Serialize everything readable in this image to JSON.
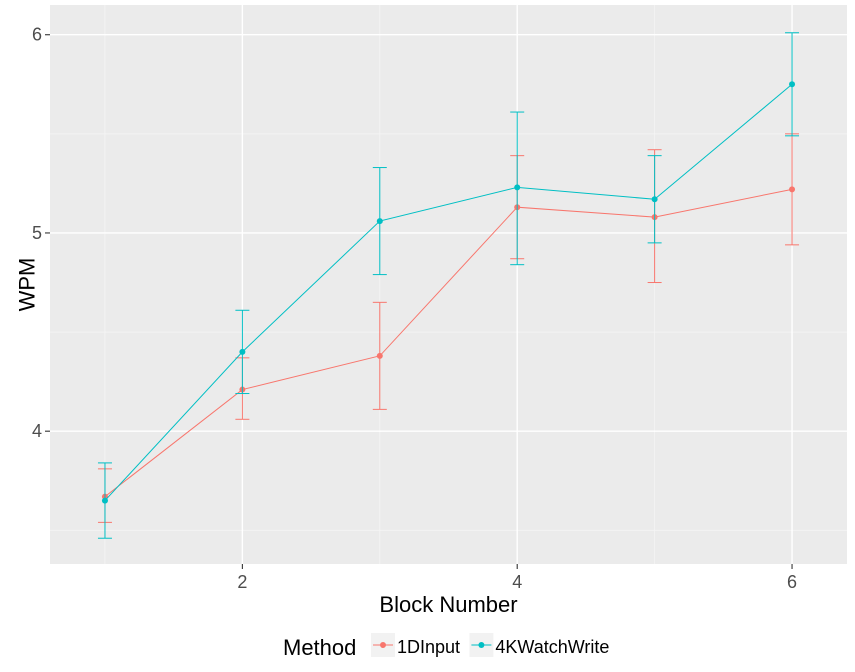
{
  "chart_data": {
    "type": "line",
    "title": "",
    "xlabel": "Block Number",
    "ylabel": "WPM",
    "x": [
      1,
      2,
      3,
      4,
      5,
      6
    ],
    "xlim": [
      0.6,
      6.4
    ],
    "ylim": [
      3.33,
      6.15
    ],
    "x_ticks": [
      2,
      4,
      6
    ],
    "y_ticks": [
      4,
      5,
      6
    ],
    "grid": true,
    "legend_title": "Method",
    "legend_position": "bottom",
    "series": [
      {
        "name": "1DInput",
        "color": "#F8766D",
        "values": [
          3.67,
          4.21,
          4.38,
          5.13,
          5.08,
          5.22
        ],
        "error_low": [
          3.54,
          4.06,
          4.11,
          4.87,
          4.75,
          4.94
        ],
        "error_high": [
          3.81,
          4.37,
          4.65,
          5.39,
          5.42,
          5.5
        ]
      },
      {
        "name": "4KWatchWrite",
        "color": "#00BFC4",
        "values": [
          3.65,
          4.4,
          5.06,
          5.23,
          5.17,
          5.75
        ],
        "error_low": [
          3.46,
          4.19,
          4.79,
          4.84,
          4.95,
          5.49
        ],
        "error_high": [
          3.84,
          4.61,
          5.33,
          5.61,
          5.39,
          6.01
        ]
      }
    ]
  }
}
